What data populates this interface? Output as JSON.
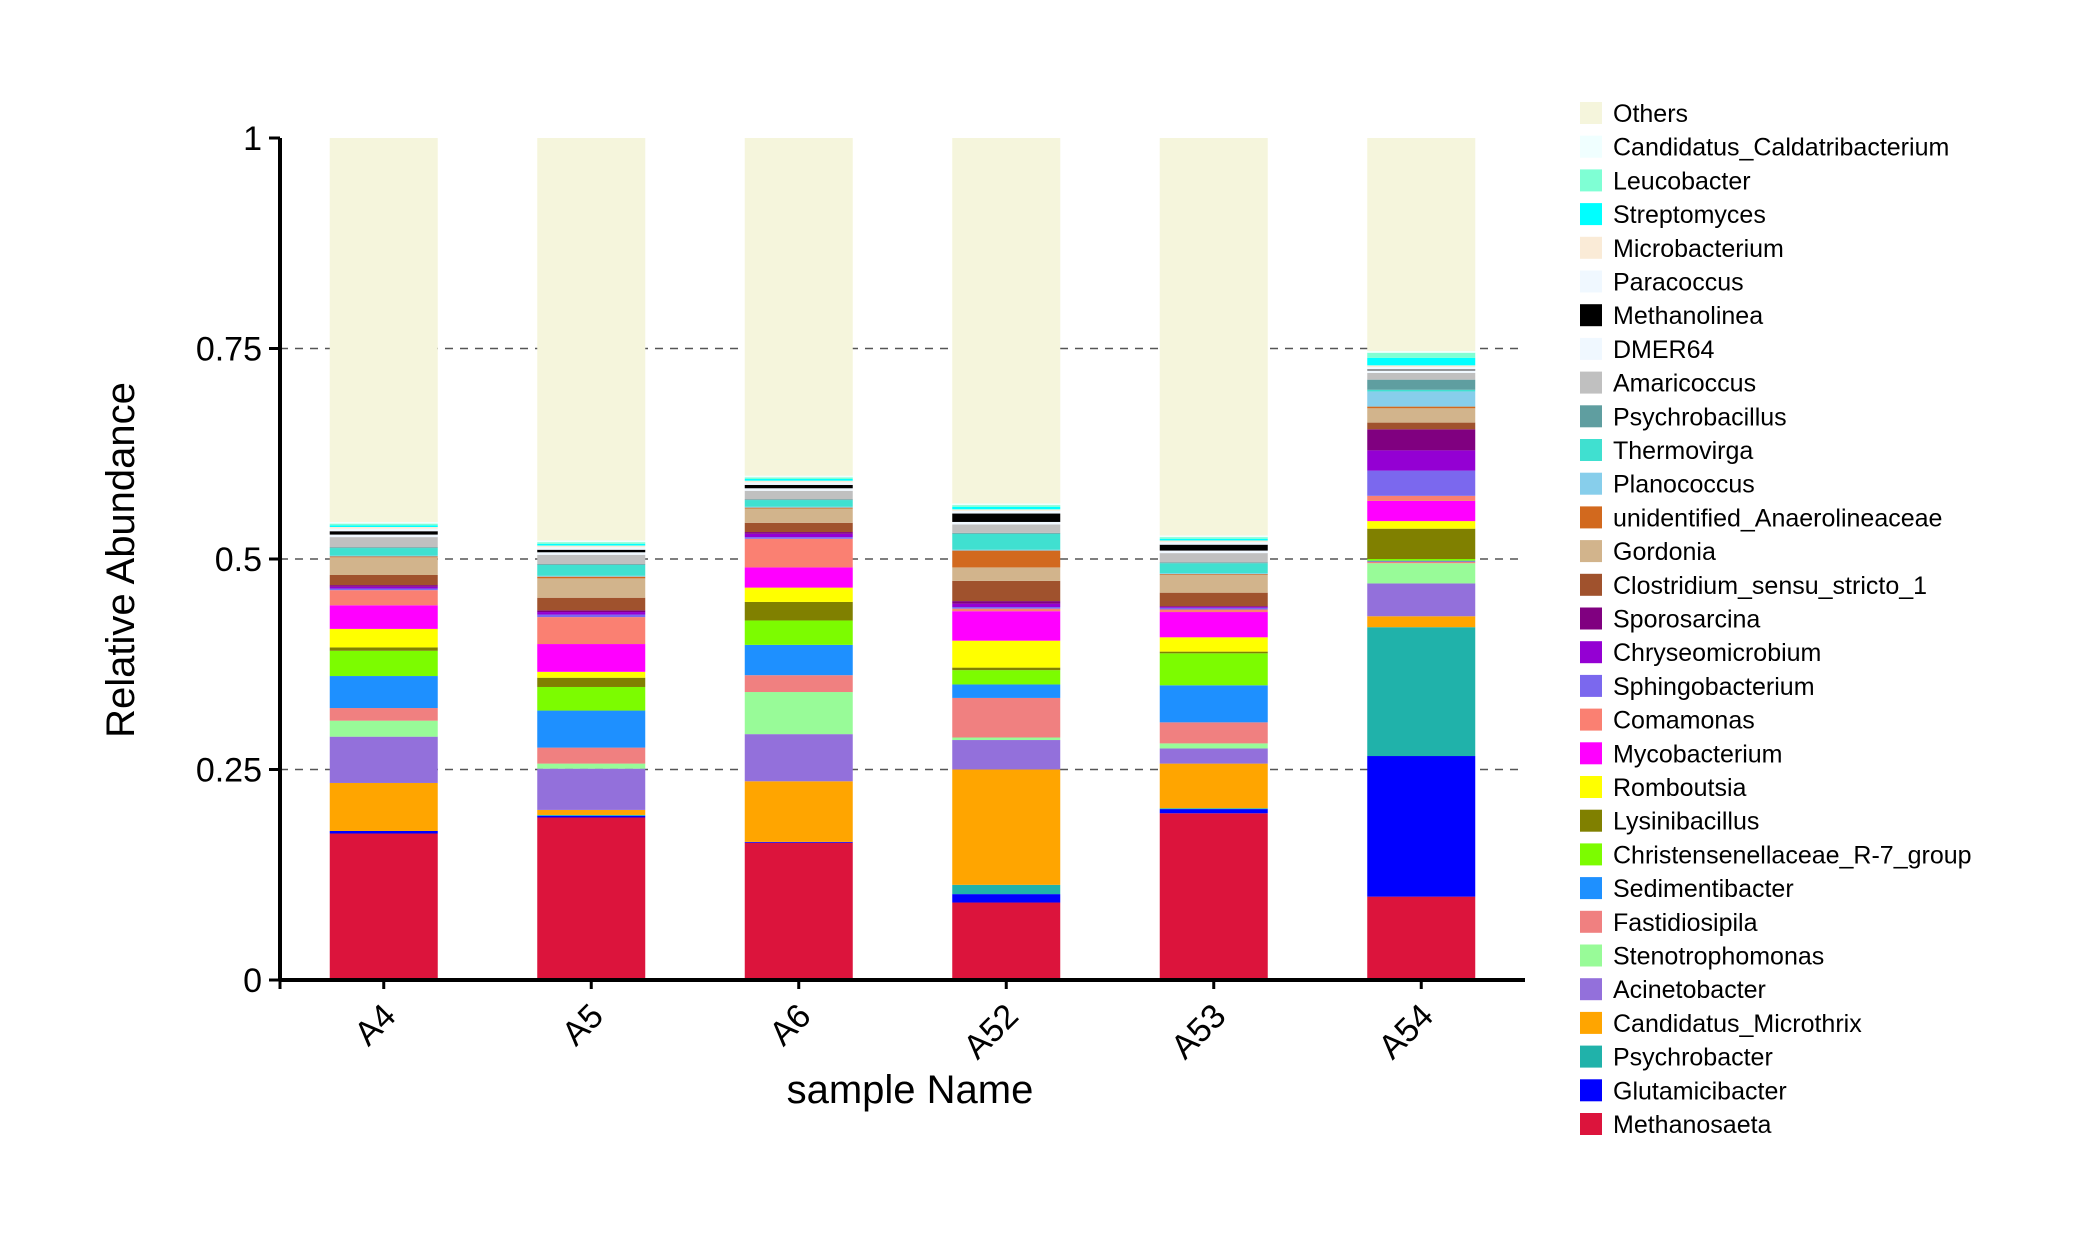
{
  "chart_data": {
    "type": "bar",
    "stacked": true,
    "title": "",
    "xlabel": "sample Name",
    "ylabel": "Relative Abundance",
    "ylim": [
      0,
      1
    ],
    "yticks": [
      "0",
      "0.25",
      "0.5",
      "0.75",
      "1"
    ],
    "ytick_values": [
      0,
      0.25,
      0.5,
      0.75,
      1
    ],
    "grid": "dashed horizontal at 0.25, 0.5, 0.75",
    "legend_position": "right",
    "categories": [
      "A4",
      "A5",
      "A6",
      "A52",
      "A53",
      "A54"
    ],
    "series": [
      {
        "name": "Methanosaeta",
        "color": "#DC143C",
        "values": [
          0.174,
          0.193,
          0.163,
          0.092,
          0.198,
          0.099
        ]
      },
      {
        "name": "Glutamicibacter",
        "color": "#0000FF",
        "values": [
          0.003,
          0.002,
          0.001,
          0.01,
          0.005,
          0.167
        ]
      },
      {
        "name": "Psychrobacter",
        "color": "#20B2AA",
        "values": [
          0.0,
          0.001,
          0.0,
          0.011,
          0.001,
          0.153
        ]
      },
      {
        "name": "Candidatus_Microthrix",
        "color": "#FFA500",
        "values": [
          0.057,
          0.006,
          0.072,
          0.137,
          0.053,
          0.013
        ]
      },
      {
        "name": "Acinetobacter",
        "color": "#9370DB",
        "values": [
          0.055,
          0.049,
          0.056,
          0.035,
          0.018,
          0.039
        ]
      },
      {
        "name": "Stenotrophomonas",
        "color": "#98FB98",
        "values": [
          0.019,
          0.006,
          0.05,
          0.003,
          0.006,
          0.024
        ]
      },
      {
        "name": "Fastidiosipila",
        "color": "#F08080",
        "values": [
          0.015,
          0.019,
          0.02,
          0.047,
          0.025,
          0.002
        ]
      },
      {
        "name": "Sedimentibacter",
        "color": "#1E90FF",
        "values": [
          0.038,
          0.044,
          0.036,
          0.016,
          0.044,
          0.001
        ]
      },
      {
        "name": "Christensenellaceae_R-7_group",
        "color": "#7CFC00",
        "values": [
          0.03,
          0.028,
          0.029,
          0.017,
          0.038,
          0.002
        ]
      },
      {
        "name": "Lysinibacillus",
        "color": "#808000",
        "values": [
          0.004,
          0.011,
          0.022,
          0.003,
          0.002,
          0.036
        ]
      },
      {
        "name": "Romboutsia",
        "color": "#FFFF00",
        "values": [
          0.022,
          0.007,
          0.017,
          0.032,
          0.017,
          0.009
        ]
      },
      {
        "name": "Mycobacterium",
        "color": "#FF00FF",
        "values": [
          0.028,
          0.033,
          0.024,
          0.035,
          0.03,
          0.024
        ]
      },
      {
        "name": "Comamonas",
        "color": "#FA8072",
        "values": [
          0.018,
          0.032,
          0.034,
          0.003,
          0.003,
          0.006
        ]
      },
      {
        "name": "Sphingobacterium",
        "color": "#7B68EE",
        "values": [
          0.002,
          0.003,
          0.002,
          0.002,
          0.002,
          0.03
        ]
      },
      {
        "name": "Chryseomicrobium",
        "color": "#9400D3",
        "values": [
          0.002,
          0.003,
          0.004,
          0.004,
          0.001,
          0.024
        ]
      },
      {
        "name": "Sporosarcina",
        "color": "#800080",
        "values": [
          0.002,
          0.002,
          0.002,
          0.003,
          0.001,
          0.025
        ]
      },
      {
        "name": "Clostridium_sensu_stricto_1",
        "color": "#A0522D",
        "values": [
          0.012,
          0.015,
          0.011,
          0.024,
          0.016,
          0.008
        ]
      },
      {
        "name": "Gordonia",
        "color": "#D2B48C",
        "values": [
          0.021,
          0.023,
          0.017,
          0.016,
          0.021,
          0.017
        ]
      },
      {
        "name": "unidentified_Anaerolineaceae",
        "color": "#D2691E",
        "values": [
          0.001,
          0.002,
          0.001,
          0.02,
          0.001,
          0.002
        ]
      },
      {
        "name": "Planococcus",
        "color": "#87CEEB",
        "values": [
          0.001,
          0.001,
          0.001,
          0.001,
          0.001,
          0.018
        ]
      },
      {
        "name": "Thermovirga",
        "color": "#40E0D0",
        "values": [
          0.009,
          0.013,
          0.008,
          0.019,
          0.012,
          0.002
        ]
      },
      {
        "name": "Psychrobacillus",
        "color": "#5F9EA0",
        "values": [
          0.001,
          0.001,
          0.001,
          0.001,
          0.001,
          0.012
        ]
      },
      {
        "name": "Amaricoccus",
        "color": "#C0C0C0",
        "values": [
          0.012,
          0.011,
          0.01,
          0.01,
          0.011,
          0.008
        ]
      },
      {
        "name": "DMER64",
        "color": "#F0F8FF",
        "values": [
          0.003,
          0.003,
          0.003,
          0.003,
          0.003,
          0.003
        ]
      },
      {
        "name": "Methanolinea",
        "color": "#000000",
        "values": [
          0.004,
          0.003,
          0.004,
          0.01,
          0.007,
          0.001
        ]
      },
      {
        "name": "Paracoccus",
        "color": "#F0F8FF",
        "values": [
          0.003,
          0.003,
          0.003,
          0.003,
          0.003,
          0.003
        ]
      },
      {
        "name": "Microbacterium",
        "color": "#FAEBD7",
        "values": [
          0.002,
          0.002,
          0.002,
          0.002,
          0.002,
          0.002
        ]
      },
      {
        "name": "Streptomyces",
        "color": "#00FFFF",
        "values": [
          0.002,
          0.002,
          0.002,
          0.003,
          0.002,
          0.009
        ]
      },
      {
        "name": "Leucobacter",
        "color": "#7FFFD4",
        "values": [
          0.002,
          0.002,
          0.002,
          0.002,
          0.002,
          0.006
        ]
      },
      {
        "name": "Candidatus_Caldatribacterium",
        "color": "#F0FFFF",
        "values": [
          0.002,
          0.002,
          0.002,
          0.002,
          0.002,
          0.002
        ]
      },
      {
        "name": "Others",
        "color": "#F5F5DC",
        "values": [
          0.456,
          0.478,
          0.401,
          0.434,
          0.472,
          0.253
        ]
      }
    ]
  }
}
